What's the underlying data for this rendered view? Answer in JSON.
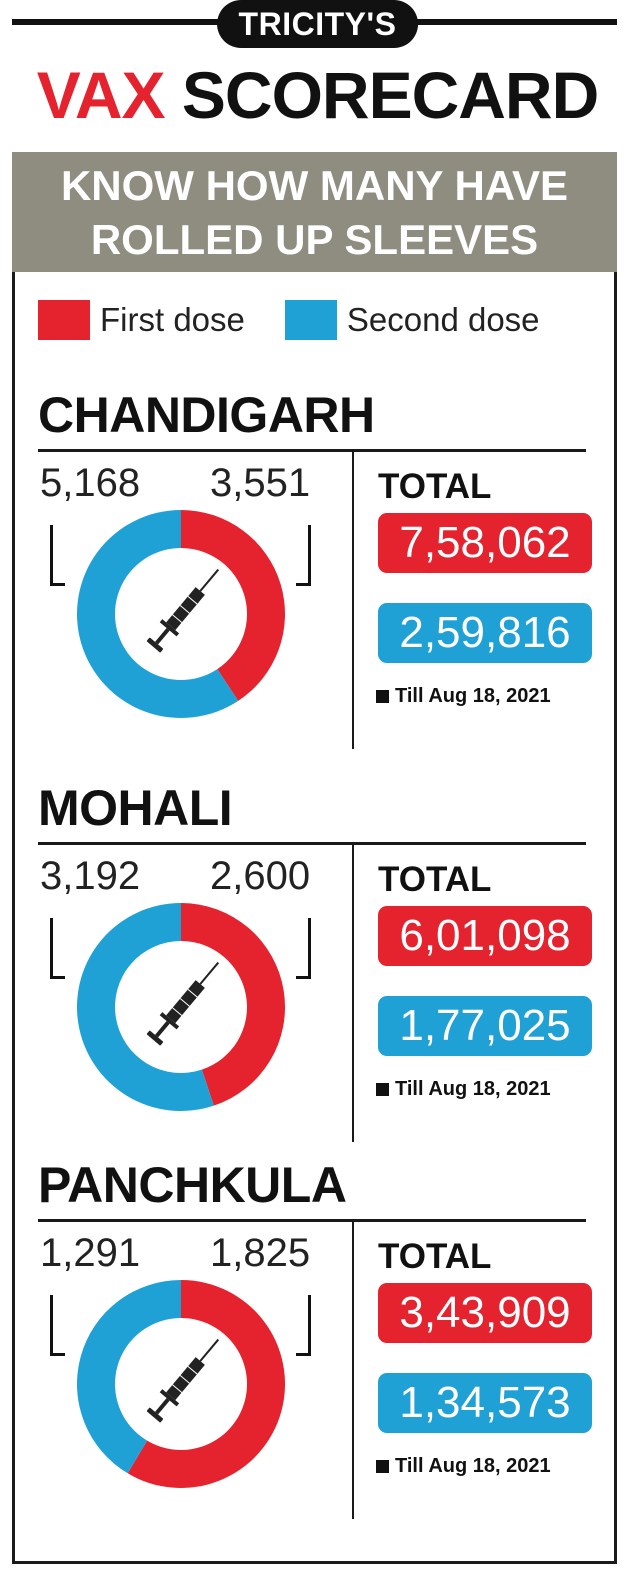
{
  "header": {
    "kicker": "TRICITY'S",
    "title_red": "VAX",
    "title_black": "SCORECARD",
    "subhead_line1": "KNOW HOW MANY HAVE",
    "subhead_line2": "ROLLED UP SLEEVES"
  },
  "legend": {
    "first_label": "First dose",
    "second_label": "Second dose"
  },
  "colors": {
    "first_dose": "#e5232e",
    "second_dose": "#1fa1d6",
    "subhead_bg": "#8e8d80"
  },
  "chart_data": [
    {
      "type": "pie",
      "title": "CHANDIGARH",
      "categories": [
        "First dose",
        "Second dose"
      ],
      "values": [
        3551,
        5168
      ],
      "donut": true,
      "total_label": "TOTAL",
      "total_first": "7,58,062",
      "total_second": "2,59,816",
      "first_label": "3,551",
      "second_label": "5,168",
      "note": "Till Aug 18, 2021"
    },
    {
      "type": "pie",
      "title": "MOHALI",
      "categories": [
        "First dose",
        "Second dose"
      ],
      "values": [
        2600,
        3192
      ],
      "donut": true,
      "total_label": "TOTAL",
      "total_first": "6,01,098",
      "total_second": "1,77,025",
      "first_label": "2,600",
      "second_label": "3,192",
      "note": "Till Aug 18, 2021"
    },
    {
      "type": "pie",
      "title": "PANCHKULA",
      "categories": [
        "First dose",
        "Second dose"
      ],
      "values": [
        1825,
        1291
      ],
      "donut": true,
      "total_label": "TOTAL",
      "total_first": "3,43,909",
      "total_second": "1,34,573",
      "first_label": "1,825",
      "second_label": "1,291",
      "note": "Till Aug 18, 2021"
    }
  ]
}
